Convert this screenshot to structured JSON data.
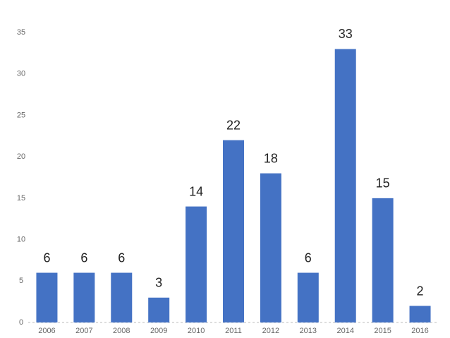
{
  "chart_data": {
    "type": "bar",
    "categories": [
      "2006",
      "2007",
      "2008",
      "2009",
      "2010",
      "2011",
      "2012",
      "2013",
      "2014",
      "2015",
      "2016"
    ],
    "values": [
      6,
      6,
      6,
      3,
      14,
      22,
      18,
      6,
      33,
      15,
      2
    ],
    "color": "#4472c4",
    "ylim": [
      0,
      35
    ],
    "yticks": [
      0,
      5,
      10,
      15,
      20,
      25,
      30,
      35
    ],
    "grid": false
  }
}
